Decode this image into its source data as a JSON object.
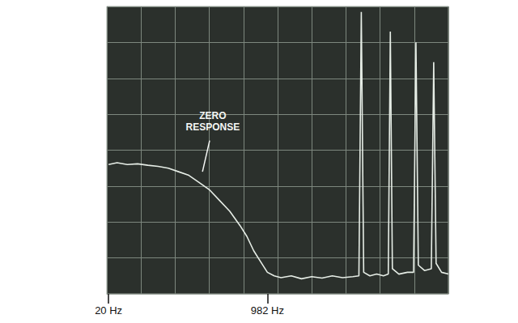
{
  "chart_data": {
    "type": "line",
    "x": [
      0.05,
      0.3,
      0.6,
      0.9,
      1.2,
      1.5,
      1.8,
      2.1,
      2.4,
      2.7,
      3.0,
      3.3,
      3.6,
      3.9,
      4.1,
      4.3,
      4.5,
      4.7,
      4.9,
      5.1,
      5.4,
      5.7,
      6.0,
      6.3,
      6.6,
      6.9,
      7.2,
      7.38,
      7.45,
      7.52,
      7.7,
      7.9,
      8.1,
      8.24,
      8.3,
      8.36,
      8.55,
      8.8,
      8.98,
      9.05,
      9.12,
      9.3,
      9.5,
      9.57,
      9.64,
      9.8,
      10
    ],
    "values": [
      3.6,
      3.65,
      3.6,
      3.62,
      3.58,
      3.55,
      3.5,
      3.4,
      3.3,
      3.1,
      2.9,
      2.6,
      2.3,
      1.9,
      1.6,
      1.2,
      0.9,
      0.6,
      0.5,
      0.45,
      0.5,
      0.42,
      0.48,
      0.44,
      0.5,
      0.45,
      0.48,
      0.5,
      7.85,
      0.6,
      0.5,
      0.55,
      0.5,
      0.55,
      7.3,
      0.7,
      0.55,
      0.6,
      0.6,
      7.0,
      0.8,
      0.65,
      0.7,
      6.45,
      0.85,
      0.6,
      0.55
    ],
    "color": "#e6ede6",
    "xlim": [
      0,
      10
    ],
    "xticks": [
      {
        "value": 0.05,
        "label": "20 Hz"
      },
      {
        "value": 4.7,
        "label": "982 Hz"
      }
    ],
    "ylim": [
      0,
      8
    ],
    "yticks": [
      0,
      1,
      2,
      3,
      4,
      5,
      6,
      7,
      8
    ],
    "grid": true,
    "tick_labels": "x",
    "annotations": [
      {
        "text": "ZERO RESPONSE",
        "x": 3.1,
        "y": 4.8,
        "arrow_to": [
          2.8,
          3.4
        ]
      }
    ]
  }
}
